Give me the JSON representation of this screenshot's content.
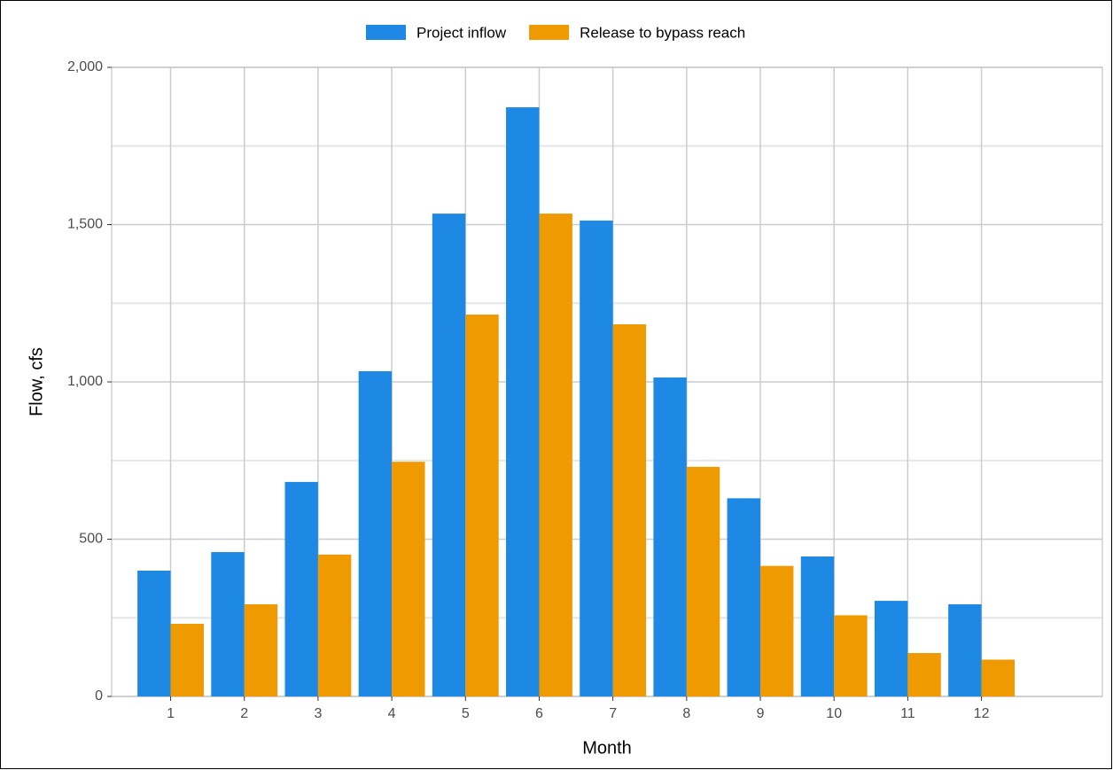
{
  "chart_data": {
    "type": "bar",
    "x_label": "Month",
    "y_label": "Flow, cfs",
    "x": [
      1,
      2,
      3,
      4,
      5,
      6,
      7,
      8,
      9,
      10,
      11,
      12
    ],
    "series": [
      {
        "name": "Project inflow",
        "color": "#1e88e5",
        "values": [
          400,
          459,
          682,
          1034,
          1535,
          1873,
          1513,
          1014,
          630,
          445,
          304,
          293
        ]
      },
      {
        "name": "Release to bypass reach",
        "color": "#ee9a00",
        "values": [
          231,
          293,
          451,
          746,
          1214,
          1535,
          1183,
          730,
          415,
          258,
          138,
          117
        ]
      }
    ],
    "xlim": [
      0.2,
      13.64
    ],
    "xticks": [
      1,
      2,
      3,
      4,
      5,
      6,
      7,
      8,
      9,
      10,
      11,
      12
    ],
    "ylim": [
      0,
      2000
    ],
    "yticks": [
      0,
      500,
      {
        "value": 1000,
        "label": "1,000"
      },
      {
        "value": 1500,
        "label": "1,500"
      },
      {
        "value": 2000,
        "label": "2,000"
      }
    ],
    "y_minor_ticks": [
      250,
      750,
      1250,
      1750
    ],
    "grid": true,
    "legend": "top"
  }
}
